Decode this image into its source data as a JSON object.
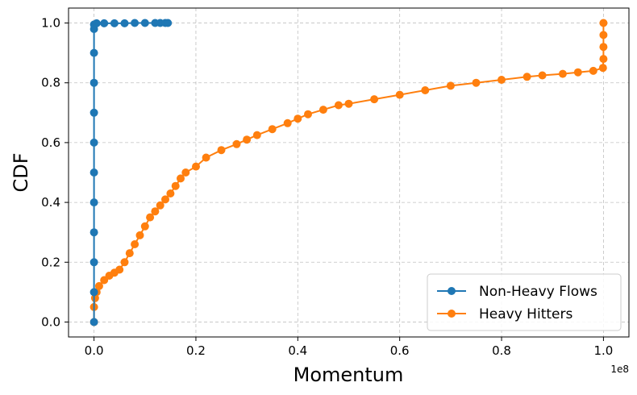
{
  "chart_data": {
    "type": "line",
    "xlabel": "Momentum",
    "ylabel": "CDF",
    "x_offset_label": "1e8",
    "xlim": [
      -0.05,
      1.05
    ],
    "ylim": [
      -0.05,
      1.05
    ],
    "xticks": [
      0.0,
      0.2,
      0.4,
      0.6,
      0.8,
      1.0
    ],
    "xtick_labels": [
      "0.0",
      "0.2",
      "0.4",
      "0.6",
      "0.8",
      "1.0"
    ],
    "yticks": [
      0.0,
      0.2,
      0.4,
      0.6,
      0.8,
      1.0
    ],
    "ytick_labels": [
      "0.0",
      "0.2",
      "0.4",
      "0.6",
      "0.8",
      "1.0"
    ],
    "grid": true,
    "legend_position": "bottom-right",
    "series": [
      {
        "name": "Non-Heavy Flows",
        "color": "#1f77b4",
        "marker": "circle",
        "x": [
          0.0,
          0.0,
          0.0,
          0.0,
          0.0,
          0.0,
          0.0,
          0.0,
          0.0,
          0.0,
          0.0,
          0.0,
          0.005,
          0.02,
          0.04,
          0.06,
          0.08,
          0.1,
          0.12,
          0.13,
          0.14,
          0.145
        ],
        "y": [
          0.0,
          0.1,
          0.2,
          0.3,
          0.4,
          0.5,
          0.6,
          0.7,
          0.8,
          0.9,
          0.98,
          0.995,
          0.999,
          0.999,
          0.999,
          0.999,
          1.0,
          1.0,
          1.0,
          1.0,
          1.0,
          1.0
        ]
      },
      {
        "name": "Heavy Hitters",
        "color": "#ff7f0e",
        "marker": "circle",
        "x": [
          0.0,
          0.0,
          0.002,
          0.005,
          0.01,
          0.02,
          0.03,
          0.04,
          0.05,
          0.06,
          0.07,
          0.08,
          0.09,
          0.1,
          0.11,
          0.12,
          0.13,
          0.14,
          0.15,
          0.16,
          0.17,
          0.18,
          0.2,
          0.22,
          0.25,
          0.28,
          0.3,
          0.32,
          0.35,
          0.38,
          0.4,
          0.42,
          0.45,
          0.48,
          0.5,
          0.55,
          0.6,
          0.65,
          0.7,
          0.75,
          0.8,
          0.85,
          0.88,
          0.92,
          0.95,
          0.98,
          0.999,
          1.0,
          1.0,
          1.0,
          1.0
        ],
        "y": [
          0.0,
          0.05,
          0.08,
          0.1,
          0.12,
          0.14,
          0.155,
          0.165,
          0.175,
          0.2,
          0.23,
          0.26,
          0.29,
          0.32,
          0.35,
          0.37,
          0.39,
          0.41,
          0.43,
          0.455,
          0.48,
          0.5,
          0.52,
          0.55,
          0.575,
          0.595,
          0.61,
          0.625,
          0.645,
          0.665,
          0.68,
          0.695,
          0.71,
          0.725,
          0.73,
          0.745,
          0.76,
          0.775,
          0.79,
          0.8,
          0.81,
          0.82,
          0.825,
          0.83,
          0.835,
          0.84,
          0.85,
          0.88,
          0.92,
          0.96,
          1.0
        ]
      }
    ]
  }
}
